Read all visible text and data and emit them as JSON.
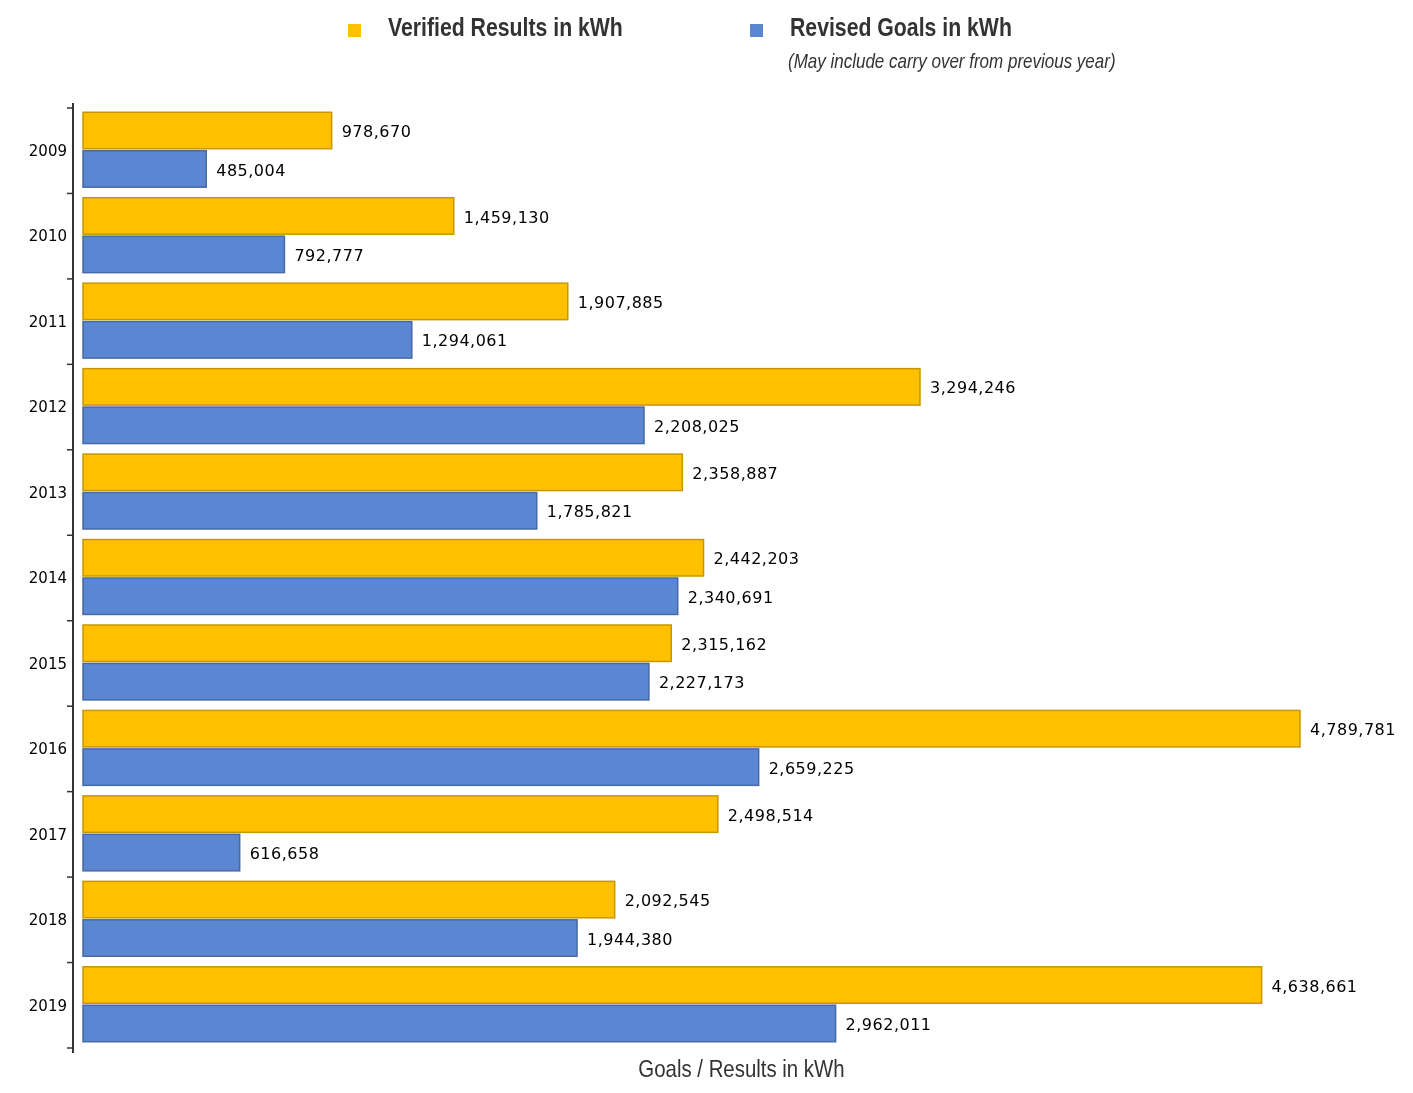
{
  "chart_data": {
    "type": "bar",
    "orientation": "horizontal",
    "xlabel": "Goals / Results in kWh",
    "categories": [
      "2009",
      "2010",
      "2011",
      "2012",
      "2013",
      "2014",
      "2015",
      "2016",
      "2017",
      "2018",
      "2019"
    ],
    "series": [
      {
        "name": "Verified Results in kWh",
        "color": "#ffc000",
        "values": [
          978670,
          1459130,
          1907885,
          3294246,
          2358887,
          2442203,
          2315162,
          4789781,
          2498514,
          2092545,
          4638661
        ],
        "value_labels": [
          "978,670",
          "1,459,130",
          "1,907,885",
          "3,294,246",
          "2,358,887",
          "2,442,203",
          "2,315,162",
          "4,789,781",
          "2,498,514",
          "2,092,545",
          "4,638,661"
        ]
      },
      {
        "name": "Revised Goals in kWh",
        "color": "#5b87d2",
        "values": [
          485004,
          792777,
          1294061,
          2208025,
          1785821,
          2340691,
          2227173,
          2659225,
          616658,
          1944380,
          2962011
        ],
        "value_labels": [
          "485,004",
          "792,777",
          "1,294,061",
          "2,208,025",
          "1,785,821",
          "2,340,691",
          "2,227,173",
          "2,659,225",
          "616,658",
          "1,944,380",
          "2,962,011"
        ]
      }
    ],
    "annotations": [
      "(May include carry over from previous year)"
    ],
    "tick_labels": "y",
    "legend": "top"
  }
}
